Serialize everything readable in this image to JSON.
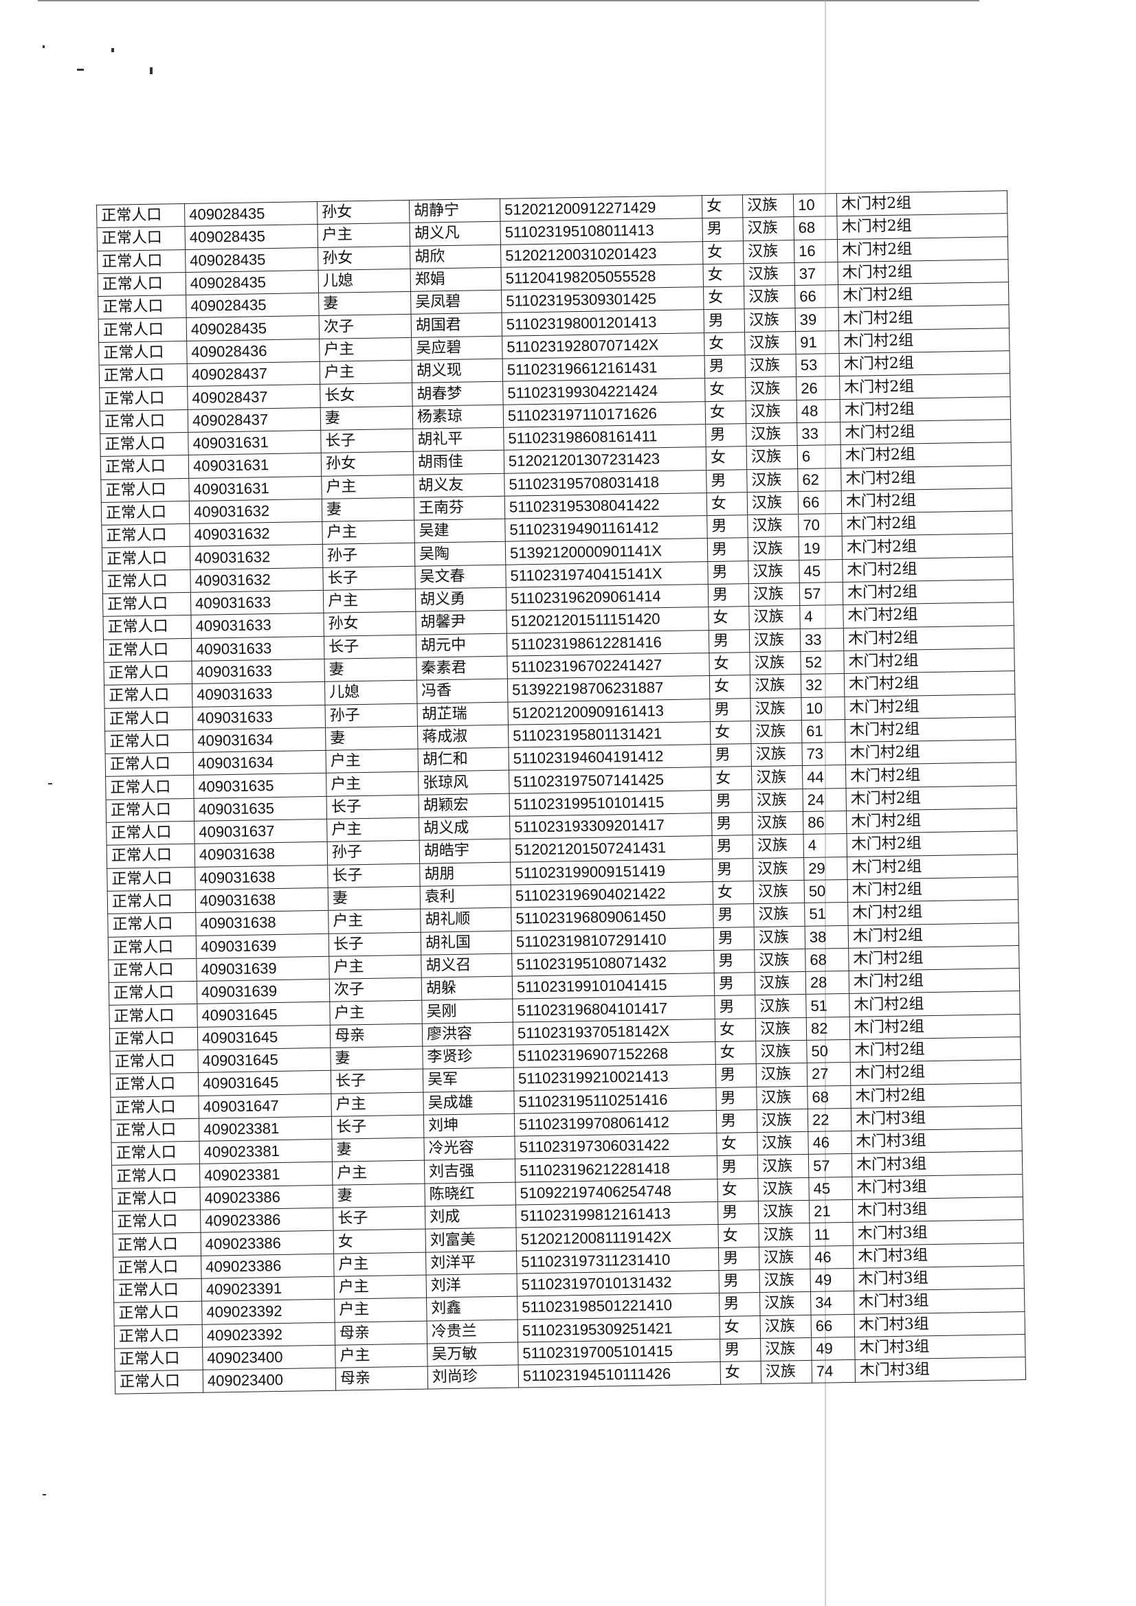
{
  "rows": [
    {
      "status": "正常人口",
      "household": "409028435",
      "relation": "孙女",
      "name": "胡静宁",
      "id": "512021200912271429",
      "gender": "女",
      "ethnicity": "汉族",
      "age": "10",
      "village": "木门村2组"
    },
    {
      "status": "正常人口",
      "household": "409028435",
      "relation": "户主",
      "name": "胡义凡",
      "id": "511023195108011413",
      "gender": "男",
      "ethnicity": "汉族",
      "age": "68",
      "village": "木门村2组"
    },
    {
      "status": "正常人口",
      "household": "409028435",
      "relation": "孙女",
      "name": "胡欣",
      "id": "512021200310201423",
      "gender": "女",
      "ethnicity": "汉族",
      "age": "16",
      "village": "木门村2组"
    },
    {
      "status": "正常人口",
      "household": "409028435",
      "relation": "儿媳",
      "name": "郑娟",
      "id": "511204198205055528",
      "gender": "女",
      "ethnicity": "汉族",
      "age": "37",
      "village": "木门村2组"
    },
    {
      "status": "正常人口",
      "household": "409028435",
      "relation": "妻",
      "name": "吴凤碧",
      "id": "511023195309301425",
      "gender": "女",
      "ethnicity": "汉族",
      "age": "66",
      "village": "木门村2组"
    },
    {
      "status": "正常人口",
      "household": "409028435",
      "relation": "次子",
      "name": "胡国君",
      "id": "511023198001201413",
      "gender": "男",
      "ethnicity": "汉族",
      "age": "39",
      "village": "木门村2组"
    },
    {
      "status": "正常人口",
      "household": "409028436",
      "relation": "户主",
      "name": "吴应碧",
      "id": "51102319280707142X",
      "gender": "女",
      "ethnicity": "汉族",
      "age": "91",
      "village": "木门村2组"
    },
    {
      "status": "正常人口",
      "household": "409028437",
      "relation": "户主",
      "name": "胡义现",
      "id": "511023196612161431",
      "gender": "男",
      "ethnicity": "汉族",
      "age": "53",
      "village": "木门村2组"
    },
    {
      "status": "正常人口",
      "household": "409028437",
      "relation": "长女",
      "name": "胡春梦",
      "id": "511023199304221424",
      "gender": "女",
      "ethnicity": "汉族",
      "age": "26",
      "village": "木门村2组"
    },
    {
      "status": "正常人口",
      "household": "409028437",
      "relation": "妻",
      "name": "杨素琼",
      "id": "511023197110171626",
      "gender": "女",
      "ethnicity": "汉族",
      "age": "48",
      "village": "木门村2组"
    },
    {
      "status": "正常人口",
      "household": "409031631",
      "relation": "长子",
      "name": "胡礼平",
      "id": "511023198608161411",
      "gender": "男",
      "ethnicity": "汉族",
      "age": "33",
      "village": "木门村2组"
    },
    {
      "status": "正常人口",
      "household": "409031631",
      "relation": "孙女",
      "name": "胡雨佳",
      "id": "512021201307231423",
      "gender": "女",
      "ethnicity": "汉族",
      "age": "6",
      "village": "木门村2组"
    },
    {
      "status": "正常人口",
      "household": "409031631",
      "relation": "户主",
      "name": "胡义友",
      "id": "511023195708031418",
      "gender": "男",
      "ethnicity": "汉族",
      "age": "62",
      "village": "木门村2组"
    },
    {
      "status": "正常人口",
      "household": "409031632",
      "relation": "妻",
      "name": "王南芬",
      "id": "511023195308041422",
      "gender": "女",
      "ethnicity": "汉族",
      "age": "66",
      "village": "木门村2组"
    },
    {
      "status": "正常人口",
      "household": "409031632",
      "relation": "户主",
      "name": "吴建",
      "id": "511023194901161412",
      "gender": "男",
      "ethnicity": "汉族",
      "age": "70",
      "village": "木门村2组"
    },
    {
      "status": "正常人口",
      "household": "409031632",
      "relation": "孙子",
      "name": "吴陶",
      "id": "51392120000901141X",
      "gender": "男",
      "ethnicity": "汉族",
      "age": "19",
      "village": "木门村2组"
    },
    {
      "status": "正常人口",
      "household": "409031632",
      "relation": "长子",
      "name": "吴文春",
      "id": "51102319740415141X",
      "gender": "男",
      "ethnicity": "汉族",
      "age": "45",
      "village": "木门村2组"
    },
    {
      "status": "正常人口",
      "household": "409031633",
      "relation": "户主",
      "name": "胡义勇",
      "id": "511023196209061414",
      "gender": "男",
      "ethnicity": "汉族",
      "age": "57",
      "village": "木门村2组"
    },
    {
      "status": "正常人口",
      "household": "409031633",
      "relation": "孙女",
      "name": "胡馨尹",
      "id": "512021201511151420",
      "gender": "女",
      "ethnicity": "汉族",
      "age": "4",
      "village": "木门村2组"
    },
    {
      "status": "正常人口",
      "household": "409031633",
      "relation": "长子",
      "name": "胡元中",
      "id": "511023198612281416",
      "gender": "男",
      "ethnicity": "汉族",
      "age": "33",
      "village": "木门村2组"
    },
    {
      "status": "正常人口",
      "household": "409031633",
      "relation": "妻",
      "name": "秦素君",
      "id": "511023196702241427",
      "gender": "女",
      "ethnicity": "汉族",
      "age": "52",
      "village": "木门村2组"
    },
    {
      "status": "正常人口",
      "household": "409031633",
      "relation": "儿媳",
      "name": "冯香",
      "id": "513922198706231887",
      "gender": "女",
      "ethnicity": "汉族",
      "age": "32",
      "village": "木门村2组"
    },
    {
      "status": "正常人口",
      "household": "409031633",
      "relation": "孙子",
      "name": "胡芷瑞",
      "id": "512021200909161413",
      "gender": "男",
      "ethnicity": "汉族",
      "age": "10",
      "village": "木门村2组"
    },
    {
      "status": "正常人口",
      "household": "409031634",
      "relation": "妻",
      "name": "蒋成淑",
      "id": "511023195801131421",
      "gender": "女",
      "ethnicity": "汉族",
      "age": "61",
      "village": "木门村2组"
    },
    {
      "status": "正常人口",
      "household": "409031634",
      "relation": "户主",
      "name": "胡仁和",
      "id": "511023194604191412",
      "gender": "男",
      "ethnicity": "汉族",
      "age": "73",
      "village": "木门村2组"
    },
    {
      "status": "正常人口",
      "household": "409031635",
      "relation": "户主",
      "name": "张琼风",
      "id": "511023197507141425",
      "gender": "女",
      "ethnicity": "汉族",
      "age": "44",
      "village": "木门村2组"
    },
    {
      "status": "正常人口",
      "household": "409031635",
      "relation": "长子",
      "name": "胡颖宏",
      "id": "511023199510101415",
      "gender": "男",
      "ethnicity": "汉族",
      "age": "24",
      "village": "木门村2组"
    },
    {
      "status": "正常人口",
      "household": "409031637",
      "relation": "户主",
      "name": "胡义成",
      "id": "511023193309201417",
      "gender": "男",
      "ethnicity": "汉族",
      "age": "86",
      "village": "木门村2组"
    },
    {
      "status": "正常人口",
      "household": "409031638",
      "relation": "孙子",
      "name": "胡皓宇",
      "id": "512021201507241431",
      "gender": "男",
      "ethnicity": "汉族",
      "age": "4",
      "village": "木门村2组"
    },
    {
      "status": "正常人口",
      "household": "409031638",
      "relation": "长子",
      "name": "胡朋",
      "id": "511023199009151419",
      "gender": "男",
      "ethnicity": "汉族",
      "age": "29",
      "village": "木门村2组"
    },
    {
      "status": "正常人口",
      "household": "409031638",
      "relation": "妻",
      "name": "袁利",
      "id": "511023196904021422",
      "gender": "女",
      "ethnicity": "汉族",
      "age": "50",
      "village": "木门村2组"
    },
    {
      "status": "正常人口",
      "household": "409031638",
      "relation": "户主",
      "name": "胡礼顺",
      "id": "511023196809061450",
      "gender": "男",
      "ethnicity": "汉族",
      "age": "51",
      "village": "木门村2组"
    },
    {
      "status": "正常人口",
      "household": "409031639",
      "relation": "长子",
      "name": "胡礼国",
      "id": "511023198107291410",
      "gender": "男",
      "ethnicity": "汉族",
      "age": "38",
      "village": "木门村2组"
    },
    {
      "status": "正常人口",
      "household": "409031639",
      "relation": "户主",
      "name": "胡义召",
      "id": "511023195108071432",
      "gender": "男",
      "ethnicity": "汉族",
      "age": "68",
      "village": "木门村2组"
    },
    {
      "status": "正常人口",
      "household": "409031639",
      "relation": "次子",
      "name": "胡躲",
      "id": "511023199101041415",
      "gender": "男",
      "ethnicity": "汉族",
      "age": "28",
      "village": "木门村2组"
    },
    {
      "status": "正常人口",
      "household": "409031645",
      "relation": "户主",
      "name": "吴刚",
      "id": "511023196804101417",
      "gender": "男",
      "ethnicity": "汉族",
      "age": "51",
      "village": "木门村2组"
    },
    {
      "status": "正常人口",
      "household": "409031645",
      "relation": "母亲",
      "name": "廖洪容",
      "id": "51102319370518142X",
      "gender": "女",
      "ethnicity": "汉族",
      "age": "82",
      "village": "木门村2组"
    },
    {
      "status": "正常人口",
      "household": "409031645",
      "relation": "妻",
      "name": "李贤珍",
      "id": "511023196907152268",
      "gender": "女",
      "ethnicity": "汉族",
      "age": "50",
      "village": "木门村2组"
    },
    {
      "status": "正常人口",
      "household": "409031645",
      "relation": "长子",
      "name": "吴军",
      "id": "511023199210021413",
      "gender": "男",
      "ethnicity": "汉族",
      "age": "27",
      "village": "木门村2组"
    },
    {
      "status": "正常人口",
      "household": "409031647",
      "relation": "户主",
      "name": "吴成雄",
      "id": "511023195110251416",
      "gender": "男",
      "ethnicity": "汉族",
      "age": "68",
      "village": "木门村2组"
    },
    {
      "status": "正常人口",
      "household": "409023381",
      "relation": "长子",
      "name": "刘坤",
      "id": "511023199708061412",
      "gender": "男",
      "ethnicity": "汉族",
      "age": "22",
      "village": "木门村3组"
    },
    {
      "status": "正常人口",
      "household": "409023381",
      "relation": "妻",
      "name": "冷光容",
      "id": "511023197306031422",
      "gender": "女",
      "ethnicity": "汉族",
      "age": "46",
      "village": "木门村3组"
    },
    {
      "status": "正常人口",
      "household": "409023381",
      "relation": "户主",
      "name": "刘吉强",
      "id": "511023196212281418",
      "gender": "男",
      "ethnicity": "汉族",
      "age": "57",
      "village": "木门村3组"
    },
    {
      "status": "正常人口",
      "household": "409023386",
      "relation": "妻",
      "name": "陈晓红",
      "id": "510922197406254748",
      "gender": "女",
      "ethnicity": "汉族",
      "age": "45",
      "village": "木门村3组"
    },
    {
      "status": "正常人口",
      "household": "409023386",
      "relation": "长子",
      "name": "刘成",
      "id": "511023199812161413",
      "gender": "男",
      "ethnicity": "汉族",
      "age": "21",
      "village": "木门村3组"
    },
    {
      "status": "正常人口",
      "household": "409023386",
      "relation": "女",
      "name": "刘富美",
      "id": "51202120081119142X",
      "gender": "女",
      "ethnicity": "汉族",
      "age": "11",
      "village": "木门村3组"
    },
    {
      "status": "正常人口",
      "household": "409023386",
      "relation": "户主",
      "name": "刘洋平",
      "id": "511023197311231410",
      "gender": "男",
      "ethnicity": "汉族",
      "age": "46",
      "village": "木门村3组"
    },
    {
      "status": "正常人口",
      "household": "409023391",
      "relation": "户主",
      "name": "刘洋",
      "id": "511023197010131432",
      "gender": "男",
      "ethnicity": "汉族",
      "age": "49",
      "village": "木门村3组"
    },
    {
      "status": "正常人口",
      "household": "409023392",
      "relation": "户主",
      "name": "刘鑫",
      "id": "511023198501221410",
      "gender": "男",
      "ethnicity": "汉族",
      "age": "34",
      "village": "木门村3组"
    },
    {
      "status": "正常人口",
      "household": "409023392",
      "relation": "母亲",
      "name": "冷贵兰",
      "id": "511023195309251421",
      "gender": "女",
      "ethnicity": "汉族",
      "age": "66",
      "village": "木门村3组"
    },
    {
      "status": "正常人口",
      "household": "409023400",
      "relation": "户主",
      "name": "吴万敏",
      "id": "511023197005101415",
      "gender": "男",
      "ethnicity": "汉族",
      "age": "49",
      "village": "木门村3组"
    },
    {
      "status": "正常人口",
      "household": "409023400",
      "relation": "母亲",
      "name": "刘尚珍",
      "id": "511023194510111426",
      "gender": "女",
      "ethnicity": "汉族",
      "age": "74",
      "village": "木门村3组"
    }
  ]
}
